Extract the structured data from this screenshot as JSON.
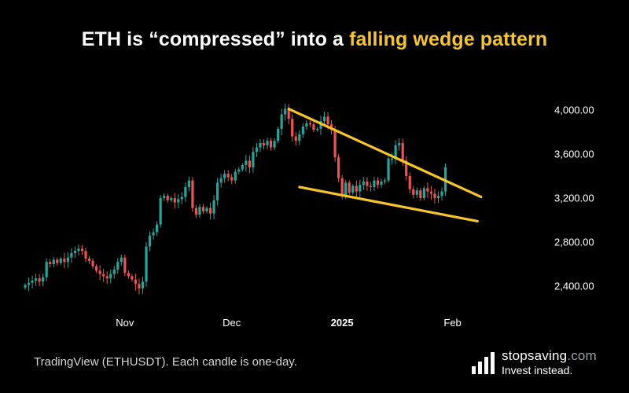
{
  "title": {
    "prefix": "ETH is “compressed” into a ",
    "highlight": "falling wedge pattern",
    "highlight_color": "#f7c625"
  },
  "caption": "TradingView (ETHUSDT). Each candle is one-day.",
  "brand": {
    "name": "stopsaving",
    "domain": ".com",
    "tagline": "Invest instead."
  },
  "chart_data": {
    "type": "candlestick",
    "symbol": "ETHUSDT",
    "interval": "1D",
    "colors": {
      "up": "#26a69a",
      "down": "#ef5350",
      "wedge": "#f7c625",
      "background": "#000000"
    },
    "grid": false,
    "ylim": [
      2300,
      4150
    ],
    "y_ticks": [
      "4,000.00",
      "3,600.00",
      "3,200.00",
      "2,800.00",
      "2,400.00"
    ],
    "y_tick_values": [
      4000,
      3600,
      3200,
      2800,
      2400
    ],
    "x_ticks": [
      {
        "label": "Nov",
        "date": "2024-11-01",
        "bold": false
      },
      {
        "label": "Dec",
        "date": "2024-12-01",
        "bold": false
      },
      {
        "label": "2025",
        "date": "2025-01-01",
        "bold": true
      },
      {
        "label": "Feb",
        "date": "2025-02-01",
        "bold": false
      }
    ],
    "dates": [
      "2024-10-04",
      "2024-10-05",
      "2024-10-06",
      "2024-10-07",
      "2024-10-08",
      "2024-10-09",
      "2024-10-10",
      "2024-10-11",
      "2024-10-12",
      "2024-10-13",
      "2024-10-14",
      "2024-10-15",
      "2024-10-16",
      "2024-10-17",
      "2024-10-18",
      "2024-10-19",
      "2024-10-20",
      "2024-10-21",
      "2024-10-22",
      "2024-10-23",
      "2024-10-24",
      "2024-10-25",
      "2024-10-26",
      "2024-10-27",
      "2024-10-28",
      "2024-10-29",
      "2024-10-30",
      "2024-10-31",
      "2024-11-01",
      "2024-11-02",
      "2024-11-03",
      "2024-11-04",
      "2024-11-05",
      "2024-11-06",
      "2024-11-07",
      "2024-11-08",
      "2024-11-09",
      "2024-11-10",
      "2024-11-11",
      "2024-11-12",
      "2024-11-13",
      "2024-11-14",
      "2024-11-15",
      "2024-11-16",
      "2024-11-17",
      "2024-11-18",
      "2024-11-19",
      "2024-11-20",
      "2024-11-21",
      "2024-11-22",
      "2024-11-23",
      "2024-11-24",
      "2024-11-25",
      "2024-11-26",
      "2024-11-27",
      "2024-11-28",
      "2024-11-29",
      "2024-11-30",
      "2024-12-01",
      "2024-12-02",
      "2024-12-03",
      "2024-12-04",
      "2024-12-05",
      "2024-12-06",
      "2024-12-07",
      "2024-12-08",
      "2024-12-09",
      "2024-12-10",
      "2024-12-11",
      "2024-12-12",
      "2024-12-13",
      "2024-12-14",
      "2024-12-15",
      "2024-12-16",
      "2024-12-17",
      "2024-12-18",
      "2024-12-19",
      "2024-12-20",
      "2024-12-21",
      "2024-12-22",
      "2024-12-23",
      "2024-12-24",
      "2024-12-25",
      "2024-12-26",
      "2024-12-27",
      "2024-12-28",
      "2024-12-29",
      "2024-12-30",
      "2024-12-31",
      "2025-01-01",
      "2025-01-02",
      "2025-01-03",
      "2025-01-04",
      "2025-01-05",
      "2025-01-06",
      "2025-01-07",
      "2025-01-08",
      "2025-01-09",
      "2025-01-10",
      "2025-01-11",
      "2025-01-12",
      "2025-01-13",
      "2025-01-14",
      "2025-01-15",
      "2025-01-16",
      "2025-01-17",
      "2025-01-18",
      "2025-01-19",
      "2025-01-20",
      "2025-01-21",
      "2025-01-22",
      "2025-01-23",
      "2025-01-24",
      "2025-01-25",
      "2025-01-26",
      "2025-01-27",
      "2025-01-28",
      "2025-01-29",
      "2025-01-30"
    ],
    "close": [
      2410,
      2430,
      2450,
      2470,
      2440,
      2480,
      2620,
      2600,
      2640,
      2610,
      2650,
      2620,
      2660,
      2700,
      2720,
      2740,
      2720,
      2650,
      2630,
      2580,
      2540,
      2510,
      2490,
      2470,
      2510,
      2550,
      2620,
      2660,
      2520,
      2490,
      2460,
      2420,
      2380,
      2440,
      2760,
      2860,
      2890,
      2960,
      3200,
      3220,
      3180,
      3200,
      3160,
      3190,
      3210,
      3300,
      3360,
      3110,
      3050,
      3120,
      3080,
      3110,
      3060,
      3180,
      3340,
      3380,
      3420,
      3390,
      3360,
      3440,
      3460,
      3500,
      3540,
      3480,
      3620,
      3660,
      3700,
      3680,
      3720,
      3660,
      3720,
      3830,
      3960,
      4010,
      3920,
      3760,
      3720,
      3780,
      3850,
      3880,
      3870,
      3820,
      3830,
      3900,
      3940,
      3870,
      3820,
      3570,
      3380,
      3220,
      3340,
      3250,
      3310,
      3260,
      3320,
      3350,
      3310,
      3300,
      3360,
      3320,
      3350,
      3360,
      3560,
      3560,
      3680,
      3700,
      3540,
      3400,
      3280,
      3230,
      3270,
      3200,
      3290,
      3260,
      3240,
      3200,
      3220,
      3260,
      3480
    ],
    "wedge_lines": [
      {
        "name": "upper",
        "from": {
          "date": "2024-12-17",
          "price": 4010
        },
        "to": {
          "date": "2025-02-09",
          "price": 3210
        }
      },
      {
        "name": "lower",
        "from": {
          "date": "2024-12-20",
          "price": 3300
        },
        "to": {
          "date": "2025-02-08",
          "price": 2990
        }
      }
    ]
  }
}
